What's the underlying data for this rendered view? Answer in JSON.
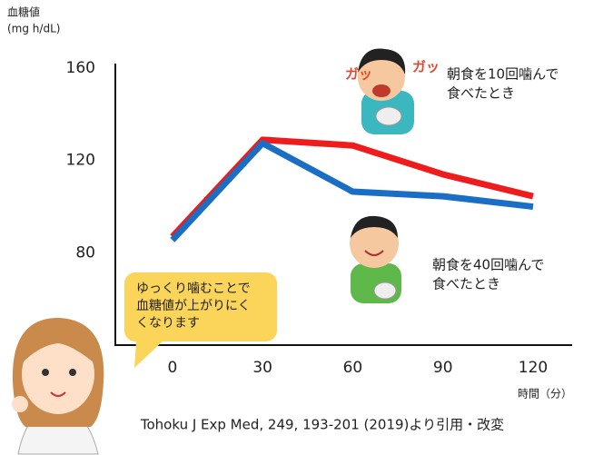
{
  "chart_data": {
    "type": "line",
    "y_label": [
      "血糖値",
      "(mg h/dL)"
    ],
    "x_label": "時間（分）",
    "x": [
      0,
      30,
      60,
      90,
      120
    ],
    "series": [
      {
        "name": "朝食を10回噛んで食べたとき",
        "color": "#ee1c1c",
        "values": [
          87,
          129,
          126.5,
          114,
          104.5
        ]
      },
      {
        "name": "朝食を40回噛んで食べたとき",
        "color": "#1a6fc4",
        "values": [
          85.5,
          127.5,
          106.5,
          104.5,
          100
        ]
      }
    ],
    "annotations": [
      [
        "朝食を10回噛んで",
        "食べたとき"
      ],
      [
        "朝食を40回噛んで",
        "食べたとき"
      ]
    ],
    "speech_bubble": [
      "ゆっくり噛むことで",
      "血糖値が上がりにく",
      "くなります"
    ],
    "sound_effects": [
      "ガッ",
      "ガッ"
    ],
    "source": "Tohoku J Exp Med, 249, 193-201 (2019)より引用・改変",
    "xlim": [
      -19,
      133
    ],
    "xticks": [
      0,
      30,
      60,
      90,
      120
    ],
    "ylim": [
      40,
      162
    ],
    "yticks": [
      80,
      120,
      160
    ]
  }
}
